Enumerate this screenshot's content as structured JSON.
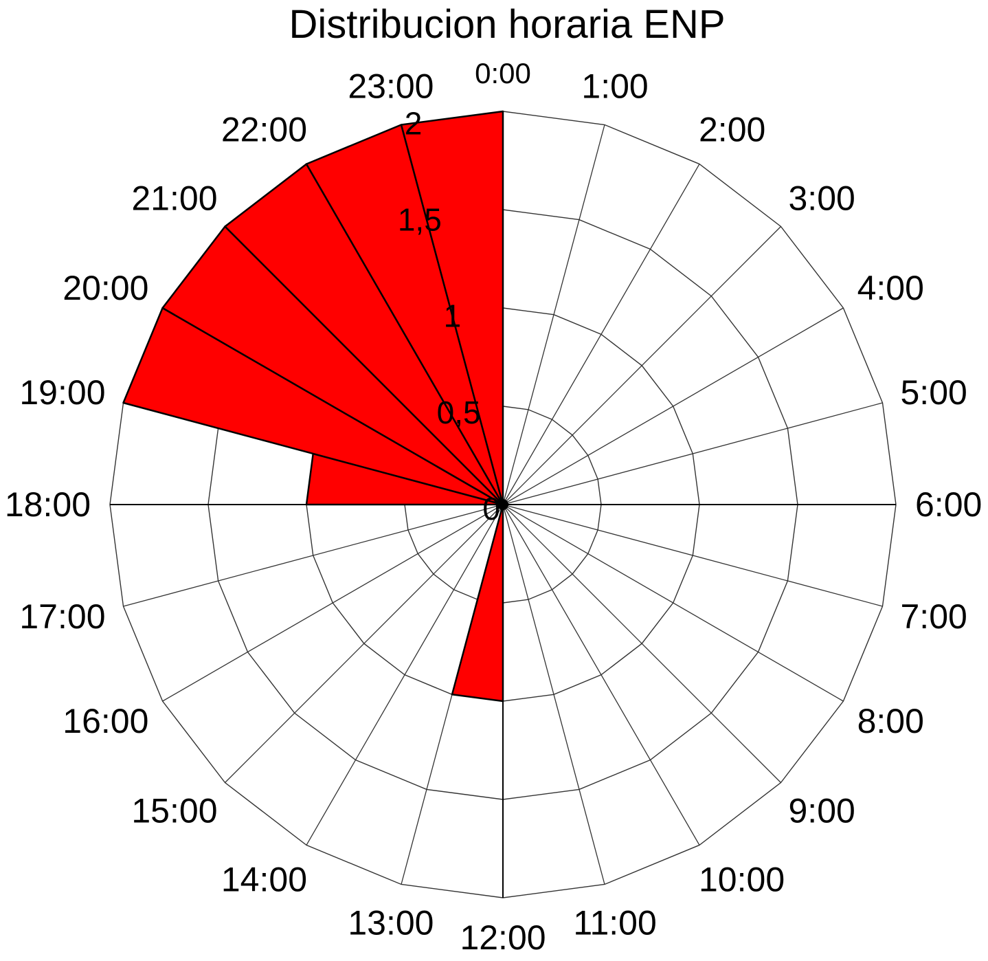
{
  "chart_data": {
    "type": "polar-bar",
    "title": "Distribucion horaria ENP",
    "categories": [
      "0:00",
      "1:00",
      "2:00",
      "3:00",
      "4:00",
      "5:00",
      "6:00",
      "7:00",
      "8:00",
      "9:00",
      "10:00",
      "11:00",
      "12:00",
      "13:00",
      "14:00",
      "15:00",
      "16:00",
      "17:00",
      "18:00",
      "19:00",
      "20:00",
      "21:00",
      "22:00",
      "23:00"
    ],
    "values": [
      0,
      0,
      0,
      0,
      0,
      0,
      0,
      0,
      0,
      0,
      0,
      0,
      1,
      0,
      0,
      0,
      0,
      0,
      1,
      2,
      2,
      2,
      2,
      2
    ],
    "radial_ticks": [
      {
        "value": 0,
        "label": "0"
      },
      {
        "value": 0.5,
        "label": "0,5"
      },
      {
        "value": 1,
        "label": "1"
      },
      {
        "value": 1.5,
        "label": "1,5"
      },
      {
        "value": 2,
        "label": "2"
      }
    ],
    "rlim": [
      0,
      2
    ],
    "bar_color": "#ff0000",
    "grid": true,
    "direction": "clockwise",
    "zero_at": "top"
  }
}
